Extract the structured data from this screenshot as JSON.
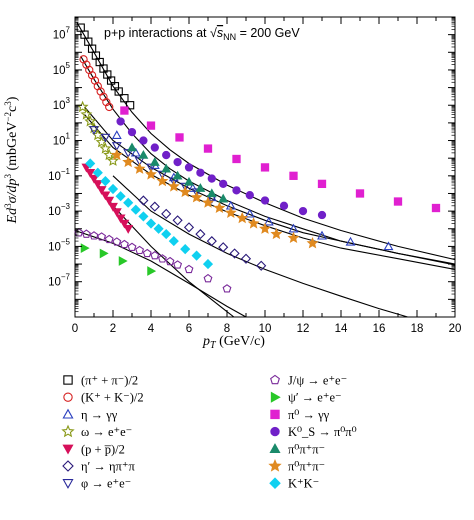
{
  "chart_data": {
    "type": "scatter",
    "title": "p+p interactions at √s_NN = 200 GeV",
    "title_parts": {
      "prefix": "p+p interactions at ",
      "sqrt": "√",
      "s": "s",
      "sub": "NN",
      "suffix": " = 200 GeV"
    },
    "xlabel": "p_T (GeV/c)",
    "xlabel_parts": {
      "p": "p",
      "sub": "T",
      "unit": " (GeV/c)"
    },
    "ylabel": "Ed³σ/dp³ (mbGeV⁻²c³)",
    "ylabel_parts": {
      "main": "Ed",
      "sup1": "3",
      "sigma": "σ/dp",
      "sup2": "3",
      "unit1": " (mbGeV",
      "sup3": "−2",
      "unit2": "c",
      "sup4": "3",
      "unit3": ")"
    },
    "xlim": [
      0,
      20
    ],
    "ylim_log10": [
      -9,
      8
    ],
    "y_scale": "log",
    "x_ticks": [
      0,
      2,
      4,
      6,
      8,
      10,
      12,
      14,
      16,
      18,
      20
    ],
    "y_ticks_exp": [
      7,
      5,
      3,
      1,
      -1,
      -3,
      -5,
      -7
    ],
    "legend_placement": "below",
    "series": [
      {
        "name": "(π⁺ + π⁻)/2",
        "marker": "square-open",
        "color": "#000000",
        "x": [
          0.3,
          0.5,
          0.7,
          0.9,
          1.1,
          1.3,
          1.5,
          1.7,
          1.9,
          2.1,
          2.3,
          2.6,
          2.9
        ],
        "y": [
          25000000,
          10000000,
          4000000,
          1600000,
          650000,
          280000,
          120000,
          55000,
          25000,
          12000,
          6000,
          2500,
          1000
        ]
      },
      {
        "name": "(K⁺ + K⁻)/2",
        "marker": "circle-open",
        "color": "#d62020",
        "x": [
          0.45,
          0.6,
          0.75,
          0.9,
          1.05,
          1.2,
          1.35,
          1.5,
          1.65,
          1.8
        ],
        "y": [
          400000,
          200000,
          100000,
          50000,
          25000,
          12000,
          6000,
          3000,
          1500,
          800
        ]
      },
      {
        "name": "η → γγ",
        "marker": "triangle-up-open",
        "color": "#2a3fbf",
        "x": [
          2.2,
          3.2,
          4.2,
          5.2,
          6.2,
          7.2,
          8.2,
          9.2,
          10.2,
          11.5,
          13,
          14.5,
          16.5
        ],
        "y": [
          20,
          2,
          0.4,
          0.08,
          0.02,
          0.006,
          0.002,
          0.0007,
          0.00025,
          0.0001,
          4e-05,
          1.8e-05,
          1e-05
        ]
      },
      {
        "name": "ω → e⁺e⁻",
        "marker": "star-open",
        "color": "#8a9a1a",
        "x": [
          0.4,
          0.6,
          0.8,
          1.0,
          1.2,
          1.4,
          1.6,
          1.8,
          2.0
        ],
        "y": [
          800,
          300,
          120,
          50,
          20,
          8,
          3.5,
          1.5,
          0.7
        ]
      },
      {
        "name": "(p + p̅)/2",
        "marker": "triangle-down-filled",
        "color": "#d6105a",
        "x": [
          0.6,
          0.8,
          1.0,
          1.2,
          1.4,
          1.6,
          1.8,
          2.0,
          2.2,
          2.4,
          2.6,
          2.8
        ],
        "y": [
          0.3,
          0.15,
          0.07,
          0.035,
          0.016,
          0.008,
          0.004,
          0.0018,
          0.0009,
          0.0004,
          0.0002,
          0.0001
        ]
      },
      {
        "name": "η′ → ηπ⁺π",
        "marker": "diamond-open",
        "color": "#2a1a7a",
        "x": [
          3.6,
          4.2,
          4.8,
          5.4,
          6.0,
          6.6,
          7.2,
          7.8,
          8.4,
          9.0,
          9.8
        ],
        "y": [
          0.004,
          0.0018,
          0.0007,
          0.0003,
          0.00012,
          5e-05,
          2e-05,
          9e-06,
          4e-06,
          2e-06,
          8e-07
        ]
      },
      {
        "name": "φ → e⁺e⁻",
        "marker": "triangle-down-open",
        "color": "#2a2a9a",
        "x": [
          1.0,
          1.6,
          2.2,
          2.8,
          3.4,
          4.0,
          4.6,
          5.2,
          5.8,
          6.4,
          7.2
        ],
        "y": [
          40,
          15,
          5,
          2,
          0.7,
          0.3,
          0.12,
          0.05,
          0.025,
          0.012,
          0.005
        ]
      },
      {
        "name": "J/ψ → e⁺e⁻",
        "marker": "pentagon-open",
        "color": "#7a2a9a",
        "x": [
          0.2,
          0.6,
          1.0,
          1.4,
          1.8,
          2.2,
          2.6,
          3.0,
          3.4,
          3.8,
          4.2,
          4.6,
          5.0,
          5.4,
          6.0,
          7.0,
          8.0
        ],
        "y": [
          6e-05,
          5e-05,
          4e-05,
          3.5e-05,
          2.5e-05,
          1.8e-05,
          1.3e-05,
          9e-06,
          6e-06,
          4e-06,
          3e-06,
          2e-06,
          1.4e-06,
          9e-07,
          5e-07,
          1.5e-07,
          4e-08
        ]
      },
      {
        "name": "ψ′ → e⁺e⁻",
        "marker": "triangle-right-filled",
        "color": "#28c828",
        "x": [
          0.5,
          1.5,
          2.5,
          4.0
        ],
        "y": [
          8e-06,
          4e-06,
          1.5e-06,
          4e-07
        ]
      },
      {
        "name": "π⁰ → γγ",
        "marker": "square-filled",
        "color": "#e020d0",
        "x": [
          2.6,
          4.0,
          5.5,
          7.0,
          8.5,
          10.0,
          11.5,
          13.0,
          15.0,
          17.0,
          19.0
        ],
        "y": [
          500,
          70,
          15,
          3.5,
          0.9,
          0.3,
          0.1,
          0.035,
          0.01,
          0.0035,
          0.0015
        ]
      },
      {
        "name": "K⁰_S → π⁰π⁰",
        "marker": "circle-filled",
        "color": "#7020c8",
        "x": [
          2.4,
          3.0,
          3.6,
          4.2,
          4.8,
          5.4,
          6.0,
          6.6,
          7.2,
          7.8,
          8.5,
          9.2,
          10.0,
          11.0,
          12.0,
          13.0
        ],
        "y": [
          120,
          30,
          10,
          4,
          1.5,
          0.6,
          0.3,
          0.15,
          0.07,
          0.035,
          0.015,
          0.008,
          0.004,
          0.002,
          0.001,
          0.0006
        ]
      },
      {
        "name": "π⁰π⁺π⁻",
        "marker": "triangle-up-filled",
        "color": "#1a8a6a",
        "x": [
          3.0,
          3.6,
          4.2,
          4.8,
          5.4,
          6.0,
          6.6,
          7.2,
          7.8
        ],
        "y": [
          4,
          1.5,
          0.6,
          0.25,
          0.1,
          0.045,
          0.02,
          0.01,
          0.005
        ]
      },
      {
        "name": "π⁰π⁺π⁻",
        "marker": "star-filled",
        "color": "#e08a20",
        "x": [
          2.2,
          2.8,
          3.4,
          4.0,
          4.6,
          5.2,
          5.8,
          6.4,
          7.0,
          7.6,
          8.2,
          8.8,
          9.4,
          10.0,
          10.6,
          11.5,
          12.5
        ],
        "y": [
          1.5,
          0.6,
          0.25,
          0.12,
          0.05,
          0.025,
          0.012,
          0.006,
          0.003,
          0.0015,
          0.0008,
          0.0004,
          0.0002,
          0.0001,
          5e-05,
          3e-05,
          1.5e-05
        ]
      },
      {
        "name": "K⁺K⁻",
        "marker": "diamond-filled",
        "color": "#10d0f0",
        "x": [
          0.8,
          1.2,
          1.6,
          2.0,
          2.4,
          2.8,
          3.2,
          3.6,
          4.0,
          4.4,
          4.8,
          5.2,
          5.8,
          6.4,
          7.0
        ],
        "y": [
          0.5,
          0.15,
          0.05,
          0.018,
          0.007,
          0.003,
          0.0012,
          0.0005,
          0.0002,
          0.0001,
          5e-05,
          2e-05,
          7e-06,
          3e-06,
          1e-06
        ]
      }
    ],
    "fit_curves": [
      {
        "x": [
          0.1,
          1,
          2,
          3,
          4,
          5,
          6,
          8,
          10,
          12,
          14,
          17,
          20
        ],
        "y": [
          50000000,
          1000000,
          12000,
          400,
          25,
          3,
          0.5,
          0.03,
          0.003,
          0.0004,
          8e-05,
          1e-05,
          1.8e-06
        ]
      },
      {
        "x": [
          0.3,
          1,
          2,
          3,
          4,
          5,
          6,
          8,
          10,
          12,
          14,
          17,
          20
        ],
        "y": [
          600000,
          30000,
          600,
          25,
          1.8,
          0.25,
          0.05,
          0.004,
          0.0005,
          0.0001,
          2e-05,
          4e-06,
          9e-07
        ]
      },
      {
        "x": [
          0.5,
          2,
          4,
          6,
          8,
          10,
          12,
          14,
          17,
          20
        ],
        "y": [
          800,
          10,
          0.3,
          0.02,
          0.002,
          0.0003,
          6e-05,
          2e-05,
          4e-06,
          1e-06
        ]
      },
      {
        "x": [
          0.5,
          2,
          4,
          6,
          8,
          10,
          12,
          14,
          17,
          20
        ],
        "y": [
          300,
          4,
          0.12,
          0.008,
          0.0009,
          0.00015,
          3e-05,
          8e-06,
          2e-06,
          5e-07
        ]
      },
      {
        "x": [
          0.5,
          2,
          4,
          6,
          8,
          9
        ],
        "y": [
          0.4,
          0.002,
          1e-05,
          1e-07,
          2e-09,
          3e-10
        ]
      },
      {
        "x": [
          2,
          4,
          6,
          8,
          10,
          12,
          14,
          16,
          18
        ],
        "y": [
          0.1,
          0.001,
          5e-05,
          4e-06,
          5e-07,
          8e-08,
          1.5e-08,
          3e-09,
          7e-10
        ]
      },
      {
        "x": [
          0,
          2,
          4,
          6,
          8,
          9
        ],
        "y": [
          8e-05,
          1.5e-05,
          1.5e-06,
          8e-08,
          4e-09,
          1e-09
        ]
      }
    ]
  }
}
